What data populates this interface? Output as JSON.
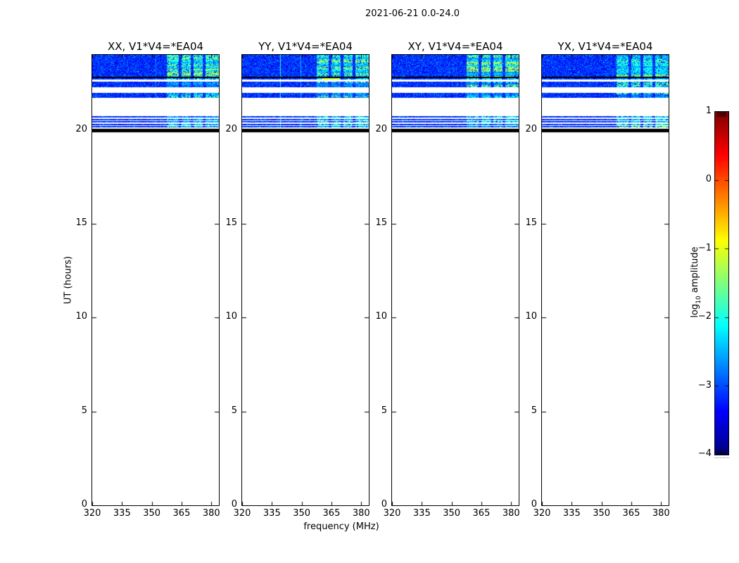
{
  "figure": {
    "suptitle": "2021-06-21 0.0-24.0"
  },
  "chart_data": {
    "type": "heatmap",
    "title": "2021-06-21 0.0-24.0",
    "xlabel": "frequency (MHz)",
    "ylabel": "UT (hours)",
    "x_axis": {
      "min": 320,
      "max": 383.8,
      "ticks": [
        320,
        335,
        350,
        365,
        380
      ],
      "unit": "MHz"
    },
    "y_axis": {
      "min": 0,
      "max": 24,
      "ticks": [
        0,
        5,
        10,
        15,
        20
      ],
      "unit": "hours"
    },
    "colorbar": {
      "label_log": "log",
      "label_sub": "10",
      "label_rest": " amplitude",
      "min": -4,
      "max": 1,
      "ticks": [
        1,
        0,
        -1,
        -2,
        -3,
        -4
      ],
      "tick_labels": [
        "1",
        "0",
        "−1",
        "−2",
        "−3",
        "−4"
      ],
      "colormap": "jet"
    },
    "panels": [
      {
        "label": "XX, V1*V4=*EA04",
        "vlines": [
          {
            "f": 352,
            "v": -2.75
          }
        ]
      },
      {
        "label": "YY, V1*V4=*EA04",
        "vlines": [
          {
            "f": 339,
            "v": -1.9
          },
          {
            "f": 349.5,
            "v": -2.4
          }
        ],
        "hot_segment": {
          "f0": 360,
          "f1": 369,
          "t0": 22.68,
          "t1": 22.78,
          "v": -1.1
        }
      },
      {
        "label": "XY, V1*V4=*EA04",
        "vlines": []
      },
      {
        "label": "YX, V1*V4=*EA04",
        "vlines": []
      }
    ],
    "bands": [
      {
        "t0": 22.85,
        "t1": 24.0,
        "kind": "noise",
        "main": true
      },
      {
        "t0": 22.78,
        "t1": 22.85,
        "kind": "black"
      },
      {
        "t0": 22.68,
        "t1": 22.78,
        "kind": "noise"
      },
      {
        "t0": 22.28,
        "t1": 22.58,
        "kind": "noise"
      },
      {
        "t0": 21.72,
        "t1": 21.98,
        "kind": "noise"
      },
      {
        "t0": 20.65,
        "t1": 20.73,
        "kind": "noise"
      },
      {
        "t0": 20.52,
        "t1": 20.6,
        "kind": "noise"
      },
      {
        "t0": 20.39,
        "t1": 20.47,
        "kind": "noise"
      },
      {
        "t0": 20.26,
        "t1": 20.34,
        "kind": "noise"
      },
      {
        "t0": 20.13,
        "t1": 20.21,
        "kind": "noise"
      },
      {
        "t0": 19.88,
        "t1": 20.08,
        "kind": "black"
      }
    ],
    "bright_blocks": [
      [
        357.5,
        363.5
      ],
      [
        365,
        369.5
      ],
      [
        371,
        375.5
      ],
      [
        377,
        383.8
      ]
    ],
    "hot_pixel": {
      "f": 353,
      "t": 22.45,
      "v": -0.4
    },
    "noise_level_log10": [
      -3.6,
      -2.75
    ],
    "bright_level_log10": [
      -2.9,
      -1.1
    ],
    "background": "#ffffff"
  }
}
